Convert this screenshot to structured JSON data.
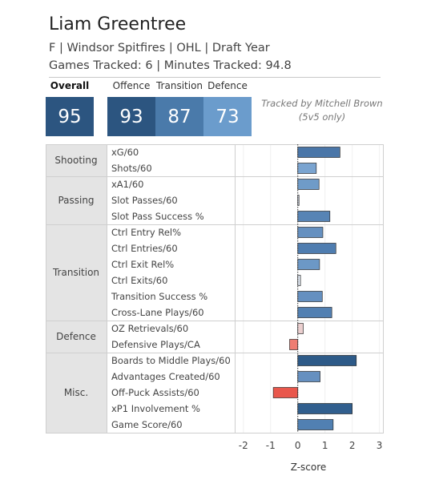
{
  "header": {
    "title": "Liam Greentree",
    "line1": "F | Windsor Spitfires | OHL | Draft Year",
    "line2": "Games Tracked: 6 | Minutes Tracked: 94.8",
    "tracked_by": "Tracked by Mitchell Brown",
    "tracked_note": "(5v5 only)"
  },
  "ratings": [
    {
      "label": "Overall",
      "value": "95",
      "color": "#2c5580"
    },
    {
      "label": "Offence",
      "value": "93",
      "color": "#2c5580"
    },
    {
      "label": "Transition",
      "value": "87",
      "color": "#4a7aaa"
    },
    {
      "label": "Defence",
      "value": "73",
      "color": "#6b9ccc"
    }
  ],
  "chart_data": {
    "type": "bar",
    "orientation": "horizontal",
    "xlabel": "Z-score",
    "xlim": [
      -2.2,
      3.1
    ],
    "xticks": [
      -2,
      -1,
      0,
      1,
      2,
      3
    ],
    "groups": [
      {
        "name": "Shooting",
        "metrics": [
          {
            "label": "xG/60",
            "value": 1.55,
            "color": "#4a76a8"
          },
          {
            "label": "Shots/60",
            "value": 0.68,
            "color": "#7aa4d0"
          }
        ]
      },
      {
        "name": "Passing",
        "metrics": [
          {
            "label": "xA1/60",
            "value": 0.78,
            "color": "#6f9bc8"
          },
          {
            "label": "Slot Passes/60",
            "value": 0.02,
            "color": "#cfd8e6"
          },
          {
            "label": "Slot Pass Success %",
            "value": 1.18,
            "color": "#5784b5"
          }
        ]
      },
      {
        "name": "Transition",
        "metrics": [
          {
            "label": "Ctrl Entry Rel%",
            "value": 0.92,
            "color": "#6590c0"
          },
          {
            "label": "Ctrl Entries/60",
            "value": 1.4,
            "color": "#4f7db0"
          },
          {
            "label": "Ctrl Exit Rel%",
            "value": 0.8,
            "color": "#6c98c6"
          },
          {
            "label": "Ctrl Exits/60",
            "value": 0.1,
            "color": "#dde5ef"
          },
          {
            "label": "Transition Success %",
            "value": 0.9,
            "color": "#6590c0"
          },
          {
            "label": "Cross-Lane Plays/60",
            "value": 1.25,
            "color": "#5280b2"
          }
        ]
      },
      {
        "name": "Defence",
        "metrics": [
          {
            "label": "OZ Retrievals/60",
            "value": 0.2,
            "color": "#ebcfcf"
          },
          {
            "label": "Defensive Plays/CA",
            "value": -0.3,
            "color": "#ee7d72"
          }
        ]
      },
      {
        "name": "Misc.",
        "metrics": [
          {
            "label": "Boards to Middle Plays/60",
            "value": 2.15,
            "color": "#2d5a88"
          },
          {
            "label": "Advantages Created/60",
            "value": 0.82,
            "color": "#6690c0"
          },
          {
            "label": "Off-Puck Assists/60",
            "value": -0.9,
            "color": "#e9574c"
          },
          {
            "label": "xP1 Involvement %",
            "value": 2.0,
            "color": "#315f8e"
          },
          {
            "label": "Game Score/60",
            "value": 1.3,
            "color": "#5180b2"
          }
        ]
      }
    ]
  }
}
